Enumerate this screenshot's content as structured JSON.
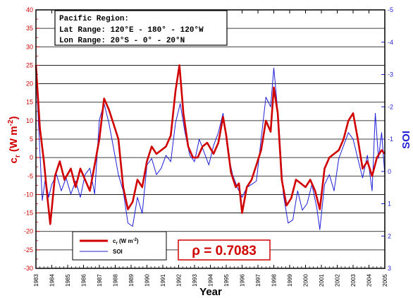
{
  "chart_data": {
    "type": "line",
    "info_box": {
      "line1": "Pacific Region:",
      "line2": "Lat Range: 120°E - 180° - 120°W",
      "line3": "Lon Range:  20°S - 0° - 20°N"
    },
    "correlation_label": "ρ = 0.7083",
    "xlabel": "Year",
    "ylabel_left": {
      "main": "c",
      "sub": "r",
      "rest": " (W m",
      "sup": "-2",
      "close": ")"
    },
    "ylabel_right": "SOI",
    "x_ticks": [
      "1983",
      "1984",
      "1985",
      "1986",
      "1987",
      "1988",
      "1989",
      "1990",
      "1991",
      "1992",
      "1993",
      "1994",
      "1995",
      "1996",
      "1997",
      "1998",
      "1999",
      "2000",
      "2001",
      "2002",
      "2003",
      "2004",
      "2005"
    ],
    "xlim": [
      1983,
      2005
    ],
    "left_axis": {
      "ylim": [
        -30,
        40
      ],
      "ticks": [
        "-30",
        "-25",
        "-20",
        "-15",
        "-10",
        "-5",
        "0",
        "5",
        "10",
        "15",
        "20",
        "25",
        "30",
        "35",
        "40"
      ]
    },
    "right_axis": {
      "ylim": [
        3,
        -5
      ],
      "ticks": [
        "3",
        "2",
        "1",
        "0",
        "-1",
        "-2",
        "-3",
        "-4",
        "-5"
      ],
      "inverted": true
    },
    "legend": {
      "placement": "bottom-left",
      "cr": {
        "main": "c",
        "sub": "r",
        "rest": " (W m",
        "sup": "-2",
        "close": ")"
      },
      "soi": "SOI"
    },
    "grid": "horizontal",
    "series": [
      {
        "name": "c_r (W m^-2)",
        "axis": "left",
        "color": "#d00000",
        "points": [
          [
            1983.0,
            25
          ],
          [
            1983.25,
            8
          ],
          [
            1983.5,
            -1
          ],
          [
            1983.75,
            -12
          ],
          [
            1983.9,
            -18
          ],
          [
            1984.2,
            -5
          ],
          [
            1984.5,
            -1
          ],
          [
            1984.8,
            -6
          ],
          [
            1985.2,
            -3
          ],
          [
            1985.5,
            -8
          ],
          [
            1985.8,
            -3
          ],
          [
            1986.1,
            -6
          ],
          [
            1986.4,
            -9
          ],
          [
            1986.7,
            -2
          ],
          [
            1987.0,
            5
          ],
          [
            1987.3,
            16
          ],
          [
            1987.6,
            13
          ],
          [
            1987.9,
            9
          ],
          [
            1988.2,
            5
          ],
          [
            1988.5,
            -8
          ],
          [
            1988.8,
            -14
          ],
          [
            1989.1,
            -12
          ],
          [
            1989.4,
            -6
          ],
          [
            1989.7,
            -8
          ],
          [
            1990.0,
            -1
          ],
          [
            1990.3,
            3
          ],
          [
            1990.6,
            1
          ],
          [
            1990.9,
            2
          ],
          [
            1991.2,
            3
          ],
          [
            1991.5,
            6
          ],
          [
            1991.8,
            18
          ],
          [
            1992.05,
            25
          ],
          [
            1992.3,
            12
          ],
          [
            1992.6,
            3
          ],
          [
            1992.9,
            0
          ],
          [
            1993.2,
            0
          ],
          [
            1993.5,
            3
          ],
          [
            1993.8,
            4
          ],
          [
            1994.2,
            1
          ],
          [
            1994.5,
            4
          ],
          [
            1994.8,
            11
          ],
          [
            1995.0,
            6
          ],
          [
            1995.3,
            -4
          ],
          [
            1995.6,
            -8
          ],
          [
            1995.8,
            -7
          ],
          [
            1996.0,
            -15
          ],
          [
            1996.3,
            -8
          ],
          [
            1996.6,
            -6
          ],
          [
            1996.9,
            -2
          ],
          [
            1997.2,
            2
          ],
          [
            1997.5,
            10
          ],
          [
            1997.8,
            7
          ],
          [
            1998.0,
            19
          ],
          [
            1998.25,
            12
          ],
          [
            1998.5,
            -6
          ],
          [
            1998.8,
            -13
          ],
          [
            1999.1,
            -11
          ],
          [
            1999.4,
            -6
          ],
          [
            1999.7,
            -7
          ],
          [
            2000.0,
            -8
          ],
          [
            2000.3,
            -6
          ],
          [
            2000.6,
            -9
          ],
          [
            2000.9,
            -14
          ],
          [
            2001.2,
            -3
          ],
          [
            2001.5,
            0
          ],
          [
            2001.8,
            1
          ],
          [
            2002.1,
            2
          ],
          [
            2002.4,
            5
          ],
          [
            2002.7,
            10
          ],
          [
            2003.0,
            12
          ],
          [
            2003.3,
            5
          ],
          [
            2003.6,
            -3
          ],
          [
            2003.9,
            -1
          ],
          [
            2004.2,
            -5
          ],
          [
            2004.5,
            0
          ],
          [
            2004.8,
            2
          ],
          [
            2005.0,
            1
          ]
        ]
      },
      {
        "name": "SOI",
        "axis": "right",
        "color": "#1f1fd8",
        "points": [
          [
            1983.0,
            -3.1
          ],
          [
            1983.2,
            -1.1
          ],
          [
            1983.4,
            0.9
          ],
          [
            1983.6,
            0.2
          ],
          [
            1983.8,
            0.8
          ],
          [
            1984.0,
            0.4
          ],
          [
            1984.3,
            0.1
          ],
          [
            1984.6,
            0.6
          ],
          [
            1984.9,
            0.2
          ],
          [
            1985.2,
            0.7
          ],
          [
            1985.5,
            0.3
          ],
          [
            1985.8,
            0.8
          ],
          [
            1986.1,
            0.1
          ],
          [
            1986.4,
            -0.1
          ],
          [
            1986.7,
            0.7
          ],
          [
            1987.0,
            -1.6
          ],
          [
            1987.3,
            -2.1
          ],
          [
            1987.6,
            -1.5
          ],
          [
            1987.9,
            -0.7
          ],
          [
            1988.2,
            0.1
          ],
          [
            1988.5,
            0.6
          ],
          [
            1988.8,
            1.6
          ],
          [
            1989.1,
            1.7
          ],
          [
            1989.4,
            0.8
          ],
          [
            1989.7,
            1.3
          ],
          [
            1990.0,
            -0.2
          ],
          [
            1990.3,
            -0.4
          ],
          [
            1990.6,
            0.1
          ],
          [
            1990.9,
            -0.1
          ],
          [
            1991.2,
            -0.5
          ],
          [
            1991.5,
            -0.3
          ],
          [
            1991.8,
            -1.5
          ],
          [
            1992.1,
            -2.1
          ],
          [
            1992.4,
            -1.2
          ],
          [
            1992.7,
            -0.5
          ],
          [
            1993.0,
            -0.3
          ],
          [
            1993.3,
            -1.0
          ],
          [
            1993.6,
            -0.6
          ],
          [
            1993.9,
            -0.2
          ],
          [
            1994.2,
            -0.8
          ],
          [
            1994.5,
            -1.2
          ],
          [
            1994.8,
            -1.8
          ],
          [
            1995.1,
            -0.6
          ],
          [
            1995.4,
            0.1
          ],
          [
            1995.7,
            0.5
          ],
          [
            1996.0,
            0.8
          ],
          [
            1996.3,
            0.5
          ],
          [
            1996.6,
            0.4
          ],
          [
            1996.9,
            0.3
          ],
          [
            1997.2,
            -1.0
          ],
          [
            1997.5,
            -2.3
          ],
          [
            1997.8,
            -2.0
          ],
          [
            1998.0,
            -3.2
          ],
          [
            1998.3,
            -1.6
          ],
          [
            1998.6,
            0.7
          ],
          [
            1998.9,
            1.6
          ],
          [
            1999.2,
            1.5
          ],
          [
            1999.5,
            0.6
          ],
          [
            1999.8,
            1.2
          ],
          [
            2000.1,
            1.0
          ],
          [
            2000.4,
            0.4
          ],
          [
            2000.7,
            1.1
          ],
          [
            2000.9,
            1.8
          ],
          [
            2001.2,
            0.4
          ],
          [
            2001.5,
            0.1
          ],
          [
            2001.8,
            0.6
          ],
          [
            2002.1,
            -0.4
          ],
          [
            2002.4,
            -0.8
          ],
          [
            2002.7,
            -1.2
          ],
          [
            2003.0,
            -1.0
          ],
          [
            2003.3,
            -0.4
          ],
          [
            2003.6,
            0.2
          ],
          [
            2003.9,
            -0.5
          ],
          [
            2004.2,
            0.6
          ],
          [
            2004.4,
            -1.8
          ],
          [
            2004.6,
            -0.4
          ],
          [
            2004.8,
            -1.2
          ],
          [
            2005.0,
            0.1
          ]
        ]
      }
    ]
  }
}
